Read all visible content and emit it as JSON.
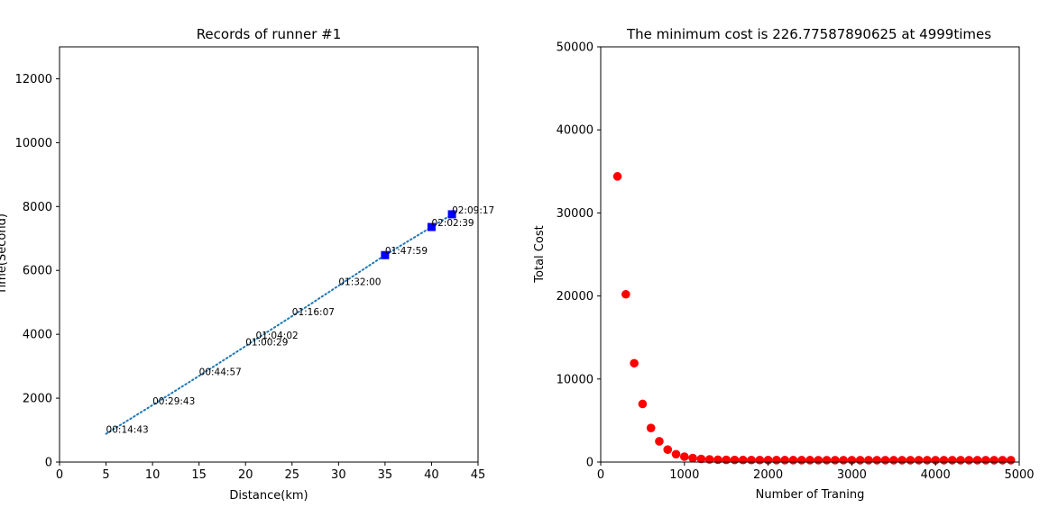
{
  "chart_data": [
    {
      "type": "scatter",
      "title": "Records of runner #1",
      "xlabel": "Distance(km)",
      "ylabel": "Time(Second)",
      "xlim": [
        0,
        45
      ],
      "ylim": [
        0,
        13000
      ],
      "xticks": [
        0,
        5,
        10,
        15,
        20,
        25,
        30,
        35,
        40,
        45
      ],
      "yticks": [
        0,
        2000,
        4000,
        6000,
        8000,
        10000,
        12000
      ],
      "grid": false,
      "line_color": "#1f77b4",
      "marker_color": "#0000ff",
      "line_series": {
        "x": [
          5,
          10,
          15,
          20,
          21.0975,
          25,
          30,
          35,
          40,
          42.195
        ],
        "y": [
          883,
          1783,
          2697,
          3629,
          3842,
          4567,
          5520,
          6479,
          7359,
          7757
        ]
      },
      "marker_series": {
        "x": [
          35,
          40,
          42.195
        ],
        "y": [
          6479,
          7359,
          7757
        ]
      },
      "annotations": [
        {
          "x": 5,
          "y": 883,
          "text": "00:14:43"
        },
        {
          "x": 10,
          "y": 1783,
          "text": "00:29:43"
        },
        {
          "x": 15,
          "y": 2697,
          "text": "00:44:57"
        },
        {
          "x": 20,
          "y": 3629,
          "text": "01:00:29"
        },
        {
          "x": 21.0975,
          "y": 3842,
          "text": "01:04:02"
        },
        {
          "x": 25,
          "y": 4567,
          "text": "01:16:07"
        },
        {
          "x": 30,
          "y": 5520,
          "text": "01:32:00"
        },
        {
          "x": 35,
          "y": 6479,
          "text": "01:47:59"
        },
        {
          "x": 40,
          "y": 7359,
          "text": "02:02:39"
        },
        {
          "x": 42.195,
          "y": 7757,
          "text": "02:09:17"
        }
      ]
    },
    {
      "type": "scatter",
      "title": "The minimum cost is 226.77587890625 at 4999times",
      "xlabel": "Number of Traning",
      "ylabel": "Total Cost",
      "xlim": [
        0,
        5000
      ],
      "ylim": [
        0,
        50000
      ],
      "xticks": [
        0,
        1000,
        2000,
        3000,
        4000,
        5000
      ],
      "yticks": [
        0,
        10000,
        20000,
        30000,
        40000,
        50000
      ],
      "grid": false,
      "marker_color": "#ff0000",
      "series": [
        {
          "x": [
            200,
            300,
            400,
            500,
            600,
            700,
            800,
            900,
            1000,
            1100,
            1200,
            1300,
            1400,
            1500,
            1600,
            1700,
            1800,
            1900,
            2000,
            2100,
            2200,
            2300,
            2400,
            2500,
            2600,
            2700,
            2800,
            2900,
            3000,
            3100,
            3200,
            3300,
            3400,
            3500,
            3600,
            3700,
            3800,
            3900,
            4000,
            4100,
            4200,
            4300,
            4400,
            4500,
            4600,
            4700,
            4800,
            4900
          ],
          "y": [
            34400,
            20200,
            11900,
            7000,
            4100,
            2500,
            1500,
            950,
            650,
            480,
            380,
            320,
            285,
            265,
            255,
            248,
            243,
            240,
            238,
            236,
            235,
            234,
            233,
            232,
            231,
            231,
            230,
            230,
            229,
            229,
            229,
            228,
            228,
            228,
            228,
            228,
            227,
            227,
            227,
            227,
            227,
            227,
            227,
            227,
            227,
            227,
            227,
            227
          ]
        }
      ]
    }
  ]
}
